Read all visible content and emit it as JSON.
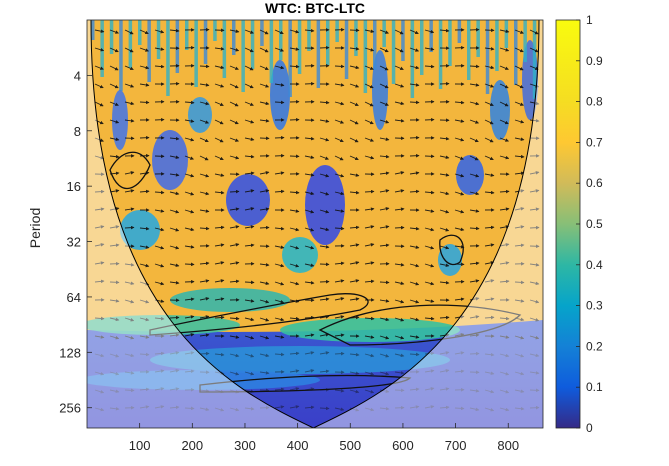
{
  "chart_data": {
    "type": "heatmap",
    "title": "WTC: BTC-LTC",
    "xlabel": "",
    "ylabel": "Period",
    "xlim": [
      0,
      866
    ],
    "ylim_period": [
      2,
      330
    ],
    "y_scale": "log2",
    "x_ticks": [
      "100",
      "200",
      "300",
      "400",
      "500",
      "600",
      "700",
      "800"
    ],
    "y_ticks": [
      "4",
      "8",
      "16",
      "32",
      "64",
      "128",
      "256"
    ],
    "colorbar": {
      "range": [
        0,
        1
      ],
      "ticks": [
        "0",
        "0.1",
        "0.2",
        "0.3",
        "0.4",
        "0.5",
        "0.6",
        "0.7",
        "0.8",
        "0.9",
        "1"
      ],
      "colormap": "parula"
    },
    "cone_of_influence": true,
    "phase_arrows": true,
    "significance_contours": true,
    "colors": {
      "low": "#3e26a8",
      "mid": "#2bbd9f",
      "high": "#f9fb0e",
      "high_coherence": "#f5b83c",
      "coi_overlay": "#ffffff"
    }
  }
}
